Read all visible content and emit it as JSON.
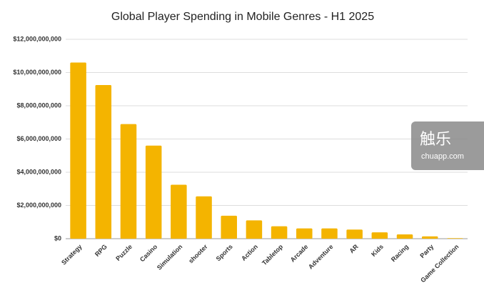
{
  "chart_data": {
    "type": "bar",
    "title": "Global Player Spending in Mobile Genres - H1 2025",
    "categories": [
      "Strategy",
      "RPG",
      "Puzzle",
      "Casino",
      "Simulation",
      "shooter",
      "Sports",
      "Action",
      "Tabletop",
      "Arcade",
      "Adventure",
      "AR",
      "Kids",
      "Racing",
      "Party",
      "Game Collection"
    ],
    "values": [
      10600000000,
      9250000000,
      6900000000,
      5600000000,
      3250000000,
      2550000000,
      1380000000,
      1100000000,
      750000000,
      620000000,
      620000000,
      550000000,
      380000000,
      260000000,
      140000000,
      30000000
    ],
    "color": "#f4b400",
    "ylim": [
      0,
      12000000000
    ],
    "yticks": [
      {
        "value": 0,
        "label": "$0"
      },
      {
        "value": 2000000000,
        "label": "$2,000,000,000"
      },
      {
        "value": 4000000000,
        "label": "$4,000,000,000"
      },
      {
        "value": 6000000000,
        "label": "$6,000,000,000"
      },
      {
        "value": 8000000000,
        "label": "$8,000,000,000"
      },
      {
        "value": 10000000000,
        "label": "$10,000,000,000"
      },
      {
        "value": 12000000000,
        "label": "$12,000,000,000"
      }
    ],
    "grid": true
  },
  "watermark": {
    "title": "触乐",
    "url": "chuapp.com"
  }
}
